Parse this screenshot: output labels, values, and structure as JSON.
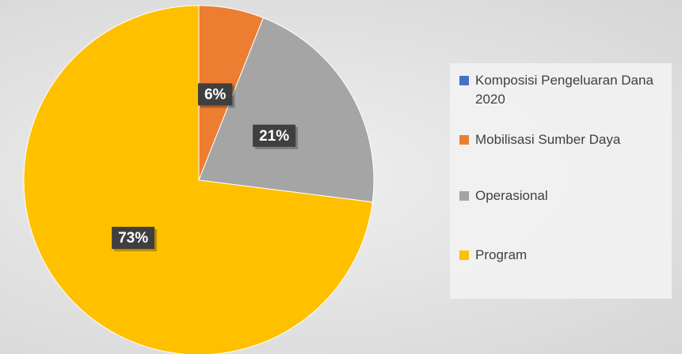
{
  "chart_data": {
    "type": "pie",
    "categories": [
      "Komposisi Pengeluaran Dana 2020",
      "Mobilisasi Sumber Daya",
      "Operasional",
      "Program"
    ],
    "values": [
      0,
      6,
      21,
      73
    ],
    "value_labels": [
      null,
      "6%",
      "21%",
      "73%"
    ],
    "colors": [
      "#4472c4",
      "#ed7d31",
      "#a5a5a5",
      "#ffc000"
    ],
    "legend": "right"
  }
}
